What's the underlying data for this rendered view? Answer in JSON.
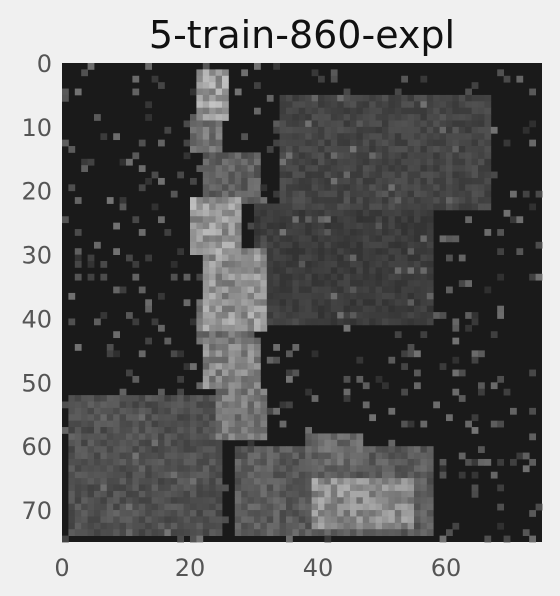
{
  "chart_data": {
    "type": "heatmap",
    "title": "5-train-860-expl",
    "colormap": "gray",
    "image_size": [
      75,
      75
    ],
    "xlim": [
      0,
      75
    ],
    "ylim": [
      75,
      0
    ],
    "x_ticks": [
      0,
      20,
      40,
      60
    ],
    "y_ticks": [
      0,
      10,
      20,
      30,
      40,
      50,
      60,
      70
    ],
    "grid": false,
    "regions": [
      {
        "x": [
          21,
          25
        ],
        "y": [
          1,
          8
        ],
        "value": 0.85
      },
      {
        "x": [
          20,
          24
        ],
        "y": [
          8,
          13
        ],
        "value": 0.6
      },
      {
        "x": [
          22,
          30
        ],
        "y": [
          14,
          21
        ],
        "value": 0.45
      },
      {
        "x": [
          20,
          27
        ],
        "y": [
          21,
          29
        ],
        "value": 0.82
      },
      {
        "x": [
          22,
          31
        ],
        "y": [
          29,
          41
        ],
        "value": 0.78
      },
      {
        "x": [
          21,
          29
        ],
        "y": [
          37,
          43
        ],
        "value": 0.55
      },
      {
        "x": [
          22,
          30
        ],
        "y": [
          44,
          50
        ],
        "value": 0.7
      },
      {
        "x": [
          24,
          31
        ],
        "y": [
          51,
          58
        ],
        "value": 0.6
      },
      {
        "x": [
          1,
          24
        ],
        "y": [
          52,
          73
        ],
        "value": 0.35
      },
      {
        "x": [
          27,
          57
        ],
        "y": [
          60,
          73
        ],
        "value": 0.42
      },
      {
        "x": [
          39,
          54
        ],
        "y": [
          65,
          72
        ],
        "value": 0.75
      },
      {
        "x": [
          38,
          46
        ],
        "y": [
          58,
          62
        ],
        "value": 0.5
      },
      {
        "x": [
          34,
          66
        ],
        "y": [
          5,
          22
        ],
        "value": 0.28
      },
      {
        "x": [
          30,
          57
        ],
        "y": [
          22,
          40
        ],
        "value": 0.22
      }
    ]
  }
}
